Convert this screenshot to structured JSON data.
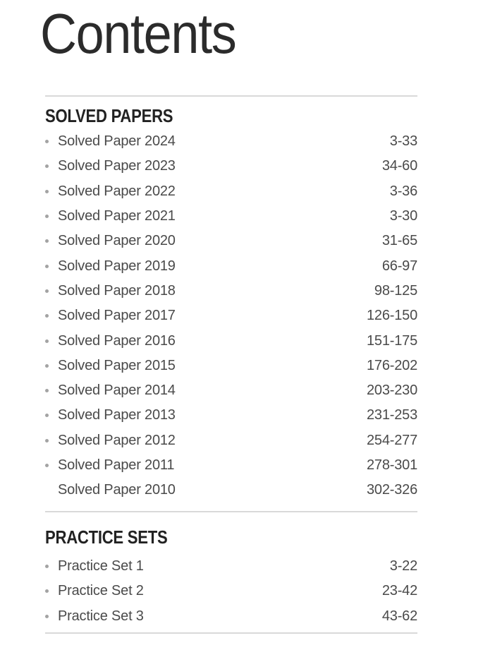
{
  "page": {
    "title": "Contents"
  },
  "sections": [
    {
      "heading": "SOLVED PAPERS",
      "items": [
        {
          "label": "Solved Paper 2024",
          "pages": "3-33",
          "bullet": true
        },
        {
          "label": "Solved Paper 2023",
          "pages": "34-60",
          "bullet": true
        },
        {
          "label": "Solved Paper 2022",
          "pages": "3-36",
          "bullet": true
        },
        {
          "label": "Solved Paper 2021",
          "pages": "3-30",
          "bullet": true
        },
        {
          "label": "Solved Paper 2020",
          "pages": "31-65",
          "bullet": true
        },
        {
          "label": "Solved Paper 2019",
          "pages": "66-97",
          "bullet": true
        },
        {
          "label": "Solved Paper 2018",
          "pages": "98-125",
          "bullet": true
        },
        {
          "label": "Solved Paper 2017",
          "pages": "126-150",
          "bullet": true
        },
        {
          "label": "Solved Paper 2016",
          "pages": "151-175",
          "bullet": true
        },
        {
          "label": "Solved Paper 2015",
          "pages": "176-202",
          "bullet": true
        },
        {
          "label": "Solved Paper 2014",
          "pages": "203-230",
          "bullet": true
        },
        {
          "label": "Solved Paper 2013",
          "pages": "231-253",
          "bullet": true
        },
        {
          "label": "Solved Paper 2012",
          "pages": "254-277",
          "bullet": true
        },
        {
          "label": "Solved Paper 2011",
          "pages": "278-301",
          "bullet": true
        },
        {
          "label": "Solved Paper 2010",
          "pages": "302-326",
          "bullet": false
        }
      ]
    },
    {
      "heading": "PRACTICE SETS",
      "items": [
        {
          "label": "Practice Set 1",
          "pages": "3-22",
          "bullet": true
        },
        {
          "label": "Practice Set 2",
          "pages": "23-42",
          "bullet": true
        },
        {
          "label": "Practice Set 3",
          "pages": "43-62",
          "bullet": true
        }
      ]
    }
  ],
  "colors": {
    "title": "#2b2b2b",
    "heading": "#222222",
    "item_text": "#4a4a4a",
    "bullet": "#a3a3a3",
    "divider": "#d9d9d9",
    "background": "#ffffff"
  }
}
